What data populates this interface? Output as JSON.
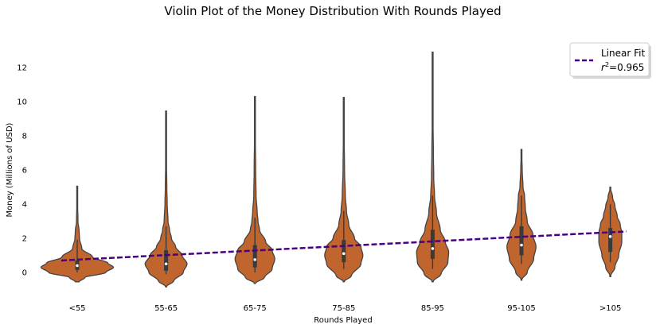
{
  "chart_data": {
    "type": "violin",
    "title": "Violin Plot of the Money Distribution With Rounds Played",
    "xlabel": "Rounds Played",
    "ylabel": "Money (Millions of USD)",
    "categories": [
      "<55",
      "55-65",
      "65-75",
      "75-85",
      "85-95",
      "95-105",
      ">105"
    ],
    "yticks": [
      0,
      2,
      4,
      6,
      8,
      10,
      12
    ],
    "ylim": [
      -1.4,
      13.2
    ],
    "grid": false,
    "violin_color": "#c0652e",
    "fit_color": "#4b0082",
    "legend": {
      "placement": "top-right",
      "label": "Linear Fit",
      "r2_label": "r",
      "r2_sup": "2",
      "r2_value": "=0.965"
    },
    "linear_fit": {
      "start": 0.7,
      "end": 2.4
    },
    "violins": [
      {
        "category": "<55",
        "min": -0.55,
        "max": 5.05,
        "q1": 0.15,
        "median": 0.4,
        "q3": 0.7,
        "wmin": 0.0,
        "wmax": 1.9,
        "profile": [
          [
            -0.55,
            0.05
          ],
          [
            -0.3,
            0.2
          ],
          [
            0.0,
            0.75
          ],
          [
            0.3,
            0.95
          ],
          [
            0.55,
            0.8
          ],
          [
            0.9,
            0.4
          ],
          [
            1.4,
            0.12
          ],
          [
            2.0,
            0.06
          ],
          [
            2.4,
            0.05
          ],
          [
            3.0,
            0.02
          ],
          [
            4.0,
            0.01
          ],
          [
            5.05,
            0.0
          ]
        ]
      },
      {
        "category": "55-65",
        "min": -0.85,
        "max": 9.45,
        "q1": 0.1,
        "median": 0.5,
        "q3": 1.3,
        "wmin": -0.1,
        "wmax": 2.7,
        "profile": [
          [
            -0.85,
            0.0
          ],
          [
            -0.5,
            0.2
          ],
          [
            0.0,
            0.45
          ],
          [
            0.5,
            0.55
          ],
          [
            1.0,
            0.42
          ],
          [
            1.5,
            0.25
          ],
          [
            2.0,
            0.14
          ],
          [
            2.5,
            0.09
          ],
          [
            3.0,
            0.05
          ],
          [
            4.0,
            0.03
          ],
          [
            5.0,
            0.02
          ],
          [
            6.5,
            0.01
          ],
          [
            9.45,
            0.0
          ]
        ]
      },
      {
        "category": "65-75",
        "min": -0.65,
        "max": 10.3,
        "q1": 0.3,
        "median": 0.75,
        "q3": 1.6,
        "wmin": 0.0,
        "wmax": 3.2,
        "profile": [
          [
            -0.65,
            0.0
          ],
          [
            -0.3,
            0.25
          ],
          [
            0.2,
            0.45
          ],
          [
            0.8,
            0.52
          ],
          [
            1.3,
            0.45
          ],
          [
            1.8,
            0.28
          ],
          [
            2.5,
            0.12
          ],
          [
            3.0,
            0.08
          ],
          [
            3.5,
            0.06
          ],
          [
            4.5,
            0.03
          ],
          [
            6.0,
            0.02
          ],
          [
            8.0,
            0.01
          ],
          [
            10.3,
            0.0
          ]
        ]
      },
      {
        "category": "75-85",
        "min": -0.55,
        "max": 10.25,
        "q1": 0.6,
        "median": 1.1,
        "q3": 1.9,
        "wmin": 0.2,
        "wmax": 3.6,
        "profile": [
          [
            -0.55,
            0.0
          ],
          [
            -0.2,
            0.2
          ],
          [
            0.5,
            0.45
          ],
          [
            1.0,
            0.5
          ],
          [
            1.5,
            0.45
          ],
          [
            2.0,
            0.28
          ],
          [
            2.8,
            0.13
          ],
          [
            3.6,
            0.07
          ],
          [
            4.5,
            0.04
          ],
          [
            6.0,
            0.02
          ],
          [
            8.0,
            0.01
          ],
          [
            10.25,
            0.0
          ]
        ]
      },
      {
        "category": "85-95",
        "min": -0.55,
        "max": 12.9,
        "q1": 0.8,
        "median": 1.4,
        "q3": 2.5,
        "wmin": 0.2,
        "wmax": 4.5,
        "profile": [
          [
            -0.55,
            0.0
          ],
          [
            -0.1,
            0.22
          ],
          [
            0.6,
            0.4
          ],
          [
            1.2,
            0.42
          ],
          [
            1.8,
            0.33
          ],
          [
            2.5,
            0.2
          ],
          [
            3.5,
            0.1
          ],
          [
            4.5,
            0.05
          ],
          [
            5.5,
            0.03
          ],
          [
            7.0,
            0.02
          ],
          [
            9.0,
            0.01
          ],
          [
            12.9,
            0.0
          ]
        ]
      },
      {
        "category": "95-105",
        "min": -0.45,
        "max": 7.2,
        "q1": 1.0,
        "median": 1.6,
        "q3": 2.7,
        "wmin": 0.5,
        "wmax": 4.5,
        "profile": [
          [
            -0.45,
            0.0
          ],
          [
            0.0,
            0.15
          ],
          [
            0.8,
            0.32
          ],
          [
            1.5,
            0.38
          ],
          [
            2.2,
            0.3
          ],
          [
            3.0,
            0.15
          ],
          [
            3.8,
            0.1
          ],
          [
            4.5,
            0.08
          ],
          [
            5.0,
            0.04
          ],
          [
            6.0,
            0.02
          ],
          [
            7.2,
            0.0
          ]
        ]
      },
      {
        "category": ">105",
        "min": -0.25,
        "max": 5.0,
        "q1": 1.2,
        "median": 2.1,
        "q3": 2.6,
        "wmin": 0.6,
        "wmax": 4.0,
        "profile": [
          [
            -0.25,
            0.0
          ],
          [
            0.3,
            0.12
          ],
          [
            1.0,
            0.22
          ],
          [
            1.8,
            0.3
          ],
          [
            2.3,
            0.3
          ],
          [
            2.8,
            0.26
          ],
          [
            3.3,
            0.18
          ],
          [
            3.9,
            0.12
          ],
          [
            4.4,
            0.06
          ],
          [
            5.0,
            0.0
          ]
        ]
      }
    ]
  }
}
